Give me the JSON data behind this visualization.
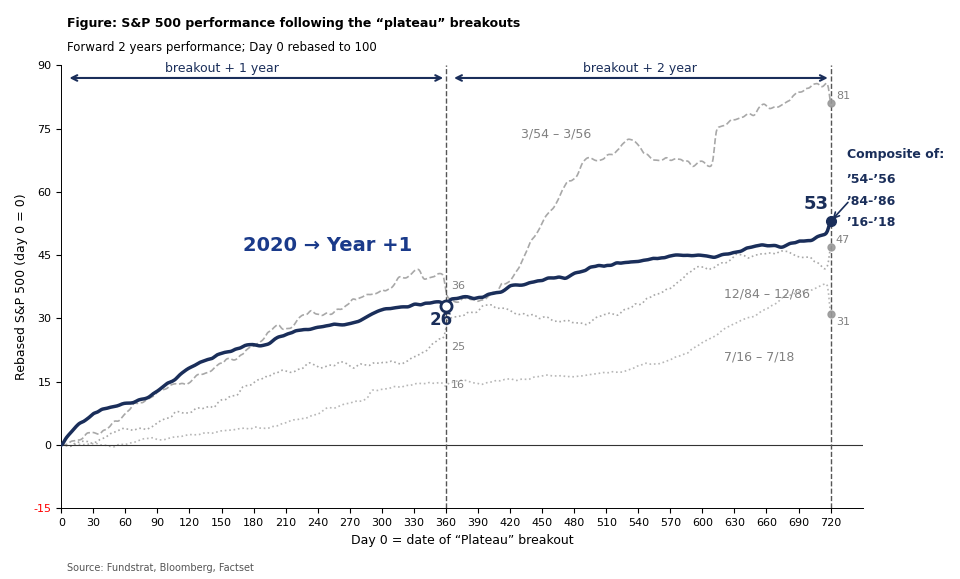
{
  "title_line1": "Figure: S&P 500 performance following the “plateau” breakouts",
  "title_line2": "Forward 2 years performance; Day 0 rebased to 100",
  "xlabel": "Day 0 = date of “Plateau” breakout",
  "ylabel": "Rebased S&P 500 (day 0 = 0)",
  "source": "Source: Fundstrat, Bloomberg, Factset",
  "xlim": [
    0,
    750
  ],
  "ylim": [
    -15,
    90
  ],
  "xticks": [
    0,
    30,
    60,
    90,
    120,
    150,
    180,
    210,
    240,
    270,
    300,
    330,
    360,
    390,
    420,
    450,
    480,
    510,
    540,
    570,
    600,
    630,
    660,
    690,
    720
  ],
  "yticks": [
    -15,
    0,
    15,
    30,
    45,
    60,
    75,
    90
  ],
  "composite_color": "#1a2e5a",
  "s54_color": "#a0a0a0",
  "s84_color": "#a0a0a0",
  "s16_color": "#a0a0a0",
  "anno_color_blue": "#1a3a8a",
  "anno_color_gray": "#808080",
  "anno_color_red": "#cc0000",
  "vline_day": 360,
  "vline_day2": 720
}
